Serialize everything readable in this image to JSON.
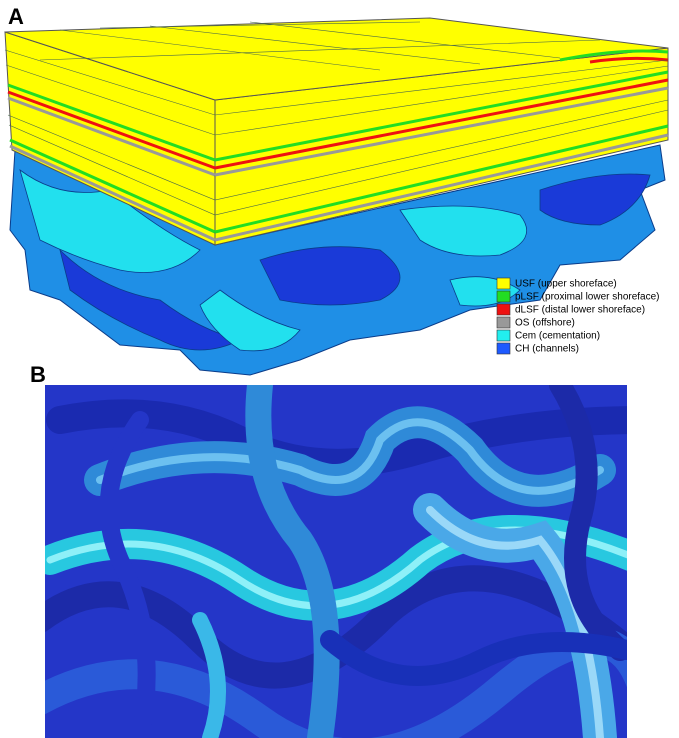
{
  "panels": [
    {
      "label": "A",
      "legend": [
        {
          "label": "USF (upper shoreface)",
          "color": "#ffff00"
        },
        {
          "label": "pLSF (proximal lower shoreface)",
          "color": "#22dd22"
        },
        {
          "label": "dLSF (distal lower shoreface)",
          "color": "#ee1111"
        },
        {
          "label": "OS (offshore)",
          "color": "#999999"
        },
        {
          "label": "Cem (cementation)",
          "color": "#22eeee"
        },
        {
          "label": "CH (channels)",
          "color": "#1e5aff"
        }
      ]
    },
    {
      "label": "B"
    }
  ]
}
